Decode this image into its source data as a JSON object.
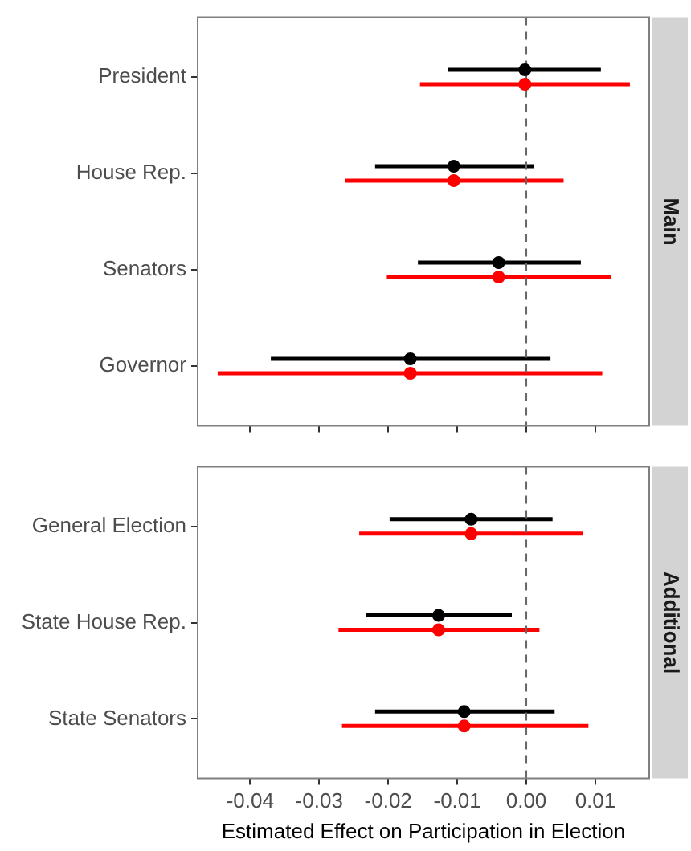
{
  "chart_data": [
    {
      "type": "scatter",
      "orientation": "horizontal",
      "title": "Main",
      "categories": [
        "President",
        "House Rep.",
        "Senators",
        "Governor"
      ],
      "series": [
        {
          "color": "#000000",
          "values": [
            -0.0002,
            -0.0105,
            -0.004,
            -0.0168
          ],
          "errors": [
            [
              -0.0113,
              0.0108
            ],
            [
              -0.0219,
              0.0011
            ],
            [
              -0.0157,
              0.0079
            ],
            [
              -0.037,
              0.0035
            ]
          ]
        },
        {
          "color": "#ff0000",
          "values": [
            -0.0002,
            -0.0105,
            -0.004,
            -0.0168
          ],
          "errors": [
            [
              -0.0154,
              0.015
            ],
            [
              -0.0262,
              0.0054
            ],
            [
              -0.0202,
              0.0123
            ],
            [
              -0.0447,
              0.011
            ]
          ]
        }
      ],
      "xlim": [
        -0.0476,
        0.0178
      ],
      "xticks": [
        -0.04,
        -0.03,
        -0.02,
        -0.01,
        0,
        0.01
      ],
      "tick_labels": "y",
      "ref_lines": [
        {
          "axis": "x",
          "value": 0,
          "color": "#666666",
          "line_style": "dashed"
        }
      ],
      "marker": "circle",
      "grid": false,
      "legend": false
    },
    {
      "type": "scatter",
      "orientation": "horizontal",
      "title": "Additional",
      "xlabel": "Estimated Effect on Participation in Election",
      "categories": [
        "General Election",
        "State House Rep.",
        "State Senators"
      ],
      "series": [
        {
          "color": "#000000",
          "values": [
            -0.008,
            -0.0127,
            -0.009
          ],
          "errors": [
            [
              -0.0198,
              0.0038
            ],
            [
              -0.0232,
              -0.0021
            ],
            [
              -0.0219,
              0.0041
            ]
          ]
        },
        {
          "color": "#ff0000",
          "values": [
            -0.008,
            -0.0127,
            -0.009
          ],
          "errors": [
            [
              -0.0242,
              0.0082
            ],
            [
              -0.0272,
              0.0019
            ],
            [
              -0.0267,
              0.009
            ]
          ]
        }
      ],
      "xlim": [
        -0.0476,
        0.0178
      ],
      "xticks": [
        -0.04,
        -0.03,
        -0.02,
        -0.01,
        {
          "value": 0,
          "label": "0.00"
        },
        0.01
      ],
      "ref_lines": [
        {
          "axis": "x",
          "value": 0,
          "color": "#666666",
          "line_style": "dashed"
        }
      ],
      "marker": "circle",
      "grid": false,
      "legend": false
    }
  ]
}
